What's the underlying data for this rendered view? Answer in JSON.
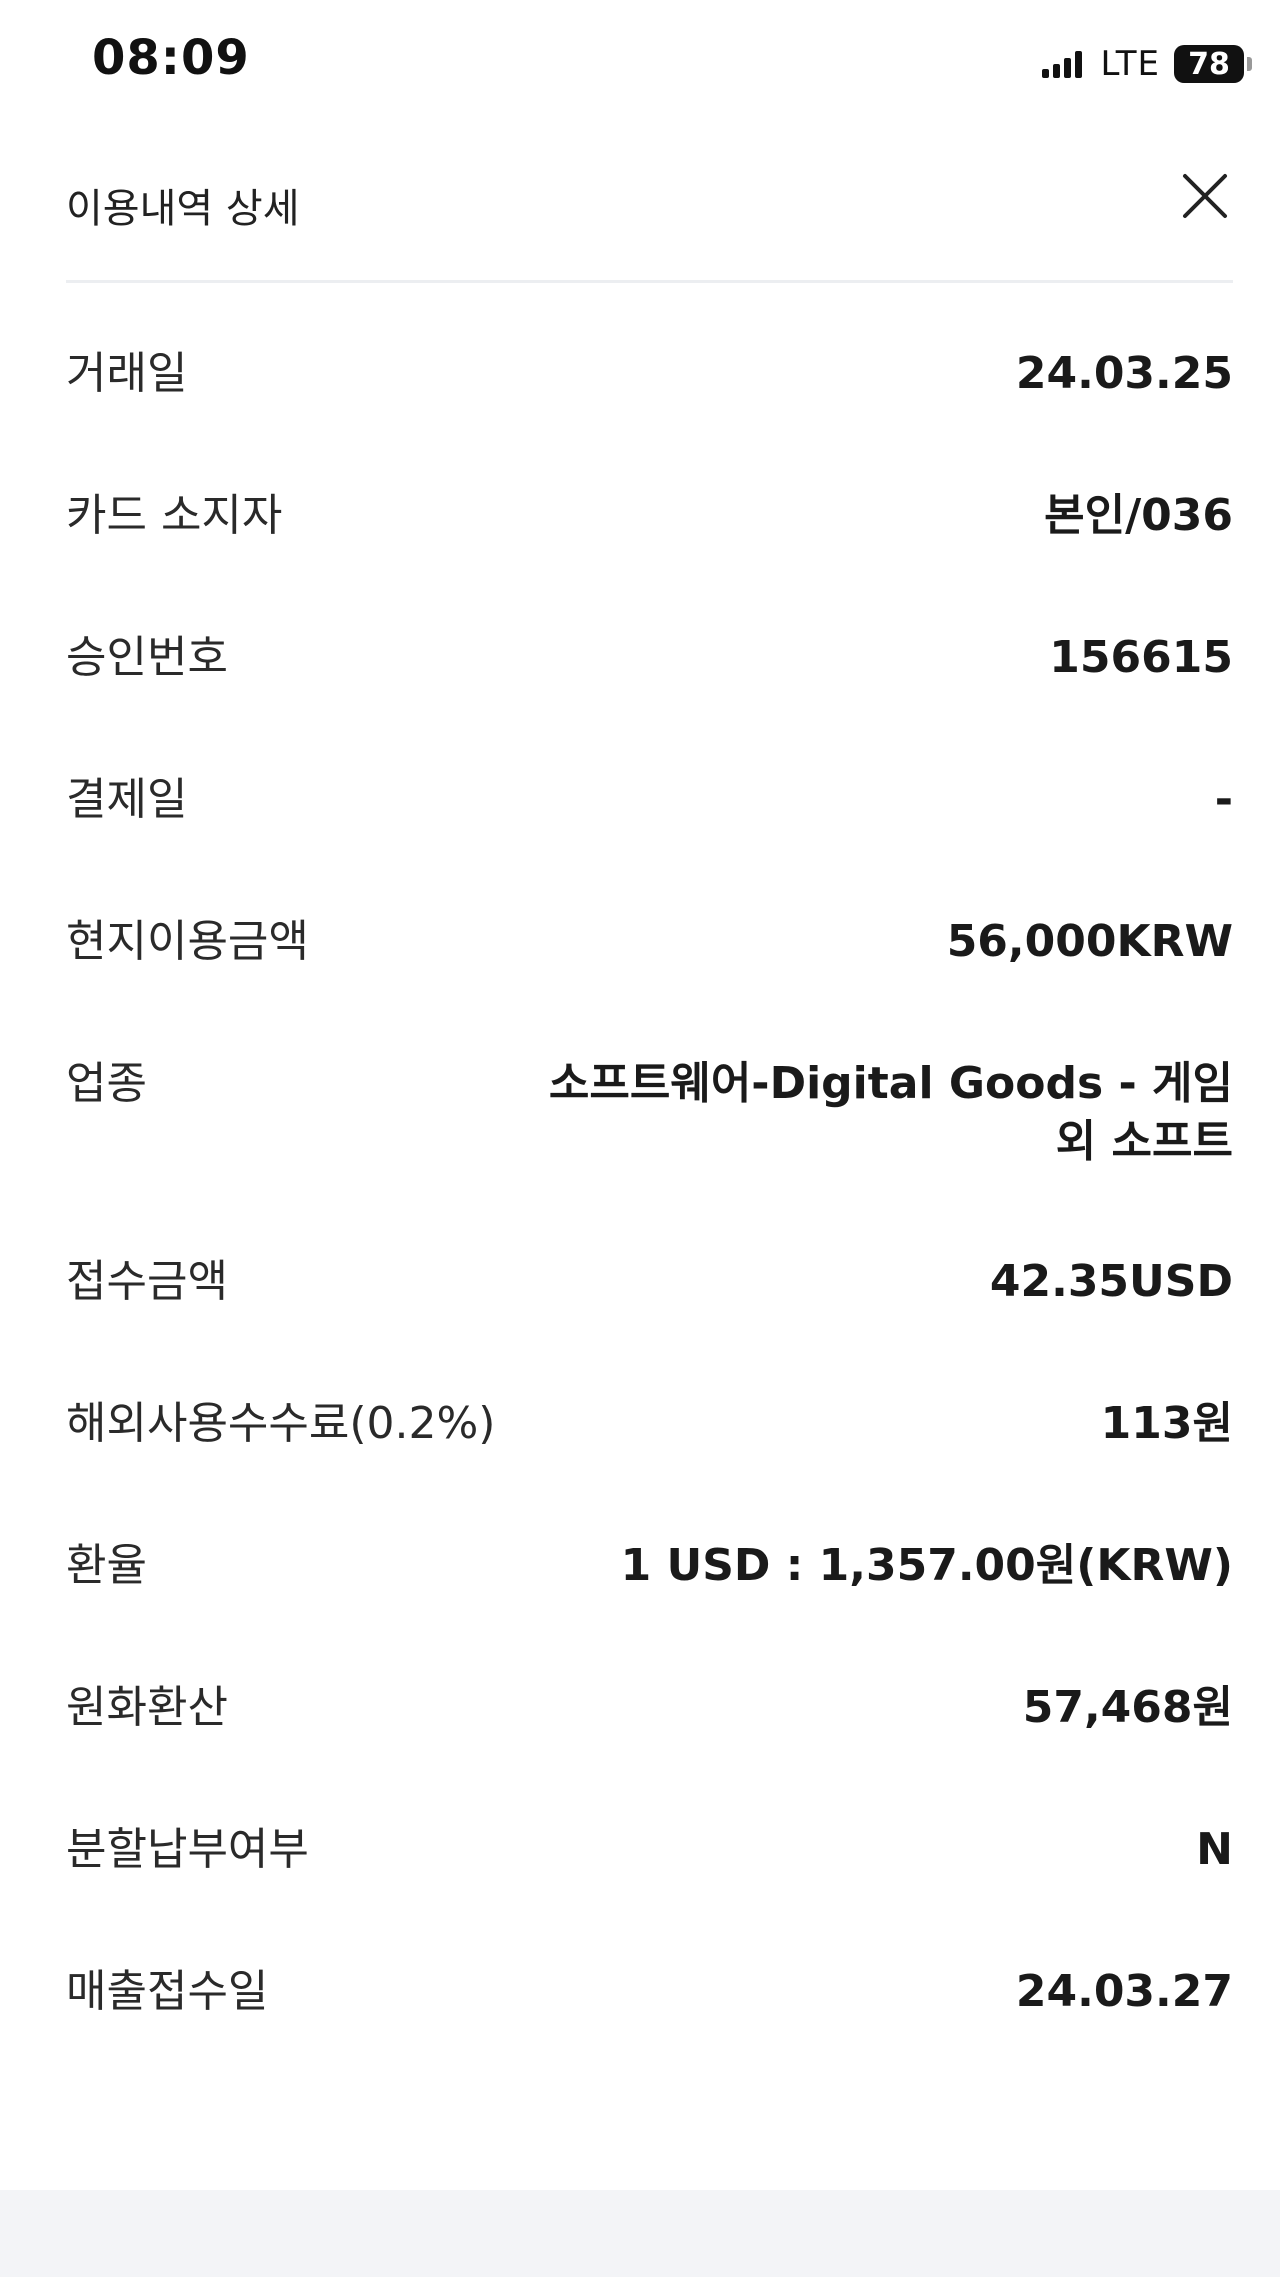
{
  "status_bar": {
    "time": "08:09",
    "network": "LTE",
    "battery": "78"
  },
  "header": {
    "title": "이용내역 상세",
    "close_icon": "close-icon"
  },
  "details": [
    {
      "label": "거래일",
      "value": "24.03.25"
    },
    {
      "label": "카드 소지자",
      "value": "본인/036"
    },
    {
      "label": "승인번호",
      "value": "156615"
    },
    {
      "label": "결제일",
      "value": "-"
    },
    {
      "label": "현지이용금액",
      "value": "56,000KRW"
    },
    {
      "label": "업종",
      "value": "소프트웨어-Digital Goods - 게임 외 소프트"
    },
    {
      "label": "접수금액",
      "value": "42.35USD"
    },
    {
      "label": "해외사용수수료(0.2%)",
      "value": "113원"
    },
    {
      "label": "환율",
      "value": "1 USD : 1,357.00원(KRW)"
    },
    {
      "label": "원화환산",
      "value": "57,468원"
    },
    {
      "label": "분할납부여부",
      "value": "N"
    },
    {
      "label": "매출접수일",
      "value": "24.03.27"
    }
  ]
}
